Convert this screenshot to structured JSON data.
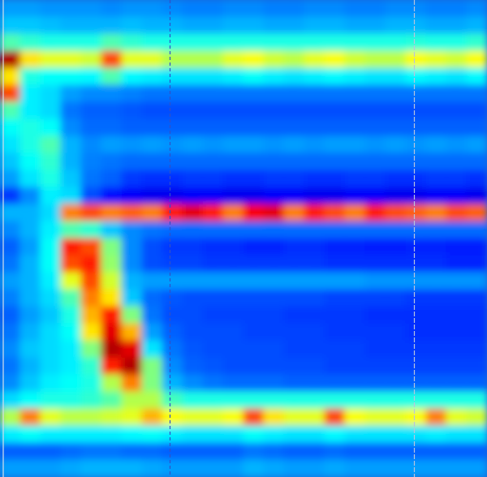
{
  "chart_data": {
    "type": "heatmap",
    "tick_labels": false,
    "zlim": [
      0,
      10
    ],
    "cells": [
      [
        2.8,
        2.8,
        2.7,
        2.7,
        2.7,
        2.6,
        2.7,
        2.7,
        2.6,
        2.5,
        2.5,
        2.6,
        2.6,
        2.5,
        2.5,
        2.6,
        2.6,
        2.5,
        2.5,
        2.6,
        2.6,
        2.5,
        2.5,
        2.6
      ],
      [
        3.2,
        3.2,
        3.1,
        3,
        3,
        3,
        3.1,
        3,
        3,
        2.9,
        2.9,
        3,
        3,
        2.9,
        2.9,
        3,
        3,
        2.9,
        2.9,
        3,
        3,
        2.9,
        2.9,
        3
      ],
      [
        4.5,
        4.2,
        4,
        4,
        4,
        4.5,
        4.2,
        4,
        4,
        4,
        4,
        4,
        4,
        4,
        4,
        4,
        4,
        4,
        4,
        4,
        4.1,
        4,
        4,
        4.2
      ],
      [
        9.5,
        6.5,
        6,
        6,
        5.8,
        8,
        6,
        6,
        5.5,
        5.5,
        5.5,
        6,
        6.2,
        5.8,
        5.6,
        6,
        6.2,
        5.8,
        5.6,
        5.6,
        6.2,
        6,
        5.8,
        6.2
      ],
      [
        6.5,
        4,
        3.8,
        3.8,
        3.7,
        4.5,
        3.7,
        3.6,
        3.5,
        3.5,
        3.5,
        3.6,
        3.8,
        3.6,
        3.5,
        3.6,
        3.7,
        3.6,
        3.5,
        3.5,
        3.7,
        3.6,
        3.5,
        3.7
      ],
      [
        8,
        3.6,
        3.4,
        2.8,
        2.6,
        2.6,
        2.5,
        2.4,
        2.4,
        2.4,
        2.4,
        2.4,
        2.4,
        2.4,
        2.4,
        2.4,
        2.4,
        2.4,
        2.4,
        2.4,
        2.4,
        2.4,
        2.4,
        2.4
      ],
      [
        4.5,
        3.6,
        3.4,
        2.4,
        2.2,
        2.2,
        2.1,
        2,
        2,
        2,
        2,
        2,
        2,
        2,
        2,
        2,
        2,
        2,
        2,
        2,
        2,
        2,
        2,
        2
      ],
      [
        3.8,
        4,
        3.8,
        2.6,
        2.3,
        2.3,
        2.2,
        2.2,
        2.2,
        2.2,
        2.2,
        2.2,
        2.2,
        2.2,
        2.2,
        2.2,
        2.2,
        2.2,
        2.2,
        2.2,
        2.2,
        2.2,
        2.2,
        2.2
      ],
      [
        3.5,
        4,
        4.5,
        3,
        2.6,
        2.8,
        2.7,
        2.8,
        2.7,
        2.8,
        2.7,
        2.8,
        2.8,
        2.7,
        2.8,
        2.7,
        2.8,
        2.8,
        2.7,
        2.8,
        2.7,
        2.8,
        2.7,
        2.8
      ],
      [
        3.2,
        3.8,
        4.2,
        3,
        2.5,
        2.4,
        2.3,
        2.3,
        2.3,
        2.3,
        2.3,
        2.3,
        2.3,
        2.3,
        2.3,
        2.3,
        2.3,
        2.3,
        2.3,
        2.3,
        2.3,
        2.3,
        2.3,
        2.3
      ],
      [
        2.8,
        3.5,
        4,
        3.2,
        2.4,
        2.2,
        1.8,
        1.7,
        1.7,
        1.8,
        1.8,
        1.7,
        1.7,
        1.8,
        1.8,
        1.7,
        1.7,
        1.8,
        1.8,
        1.7,
        1.7,
        1.8,
        1.8,
        1.7
      ],
      [
        1.8,
        2.6,
        3.6,
        3.4,
        2,
        1.4,
        1.2,
        1.1,
        1.1,
        1.2,
        1.2,
        1.1,
        1.1,
        1.2,
        1.2,
        1.1,
        1.1,
        1.2,
        1.2,
        1.1,
        1.1,
        1.2,
        1.2,
        1.1
      ],
      [
        3,
        3,
        3.4,
        7.5,
        8,
        7.5,
        7.8,
        7.5,
        8.5,
        9,
        8.5,
        7.5,
        8.8,
        9,
        7.5,
        8.5,
        8,
        7.5,
        8.5,
        8,
        7.8,
        7.5,
        8,
        7.8
      ],
      [
        2.6,
        3,
        3.6,
        4.5,
        4.2,
        3.2,
        2.6,
        2.4,
        2.3,
        2.3,
        2.3,
        2.3,
        2.3,
        2.3,
        2.3,
        2.3,
        2.3,
        2.3,
        2.3,
        2.3,
        2.3,
        2.3,
        2.3,
        2.3
      ],
      [
        2.2,
        2.8,
        3.8,
        8.5,
        8,
        5,
        2.6,
        2,
        1.8,
        1.8,
        1.7,
        1.7,
        1.6,
        1.6,
        1.7,
        1.7,
        1.6,
        1.6,
        1.5,
        1.5,
        1.6,
        1.6,
        1.5,
        1.5
      ],
      [
        2.4,
        3,
        3.8,
        8,
        8.5,
        5.2,
        2.6,
        2,
        1.9,
        1.9,
        1.8,
        1.8,
        1.8,
        1.8,
        1.8,
        1.8,
        1.7,
        1.7,
        1.7,
        1.7,
        1.7,
        1.7,
        1.6,
        1.6
      ],
      [
        2.8,
        3,
        3.6,
        6,
        8,
        5.8,
        3,
        2.8,
        2.8,
        2.8,
        2.8,
        2.8,
        2.8,
        2.8,
        2.8,
        2.8,
        2.8,
        2.8,
        2.7,
        2.7,
        2.7,
        2.7,
        2.7,
        2.7
      ],
      [
        2.5,
        3,
        3.4,
        4.5,
        7.5,
        6.5,
        3.2,
        2.3,
        2.1,
        2,
        2,
        2,
        2,
        2,
        2,
        2,
        1.9,
        1.9,
        1.9,
        1.9,
        1.8,
        1.8,
        1.8,
        1.8
      ],
      [
        2.2,
        2.8,
        3.2,
        4,
        7,
        8.5,
        5,
        2.4,
        2,
        2,
        1.9,
        1.9,
        1.9,
        1.9,
        1.8,
        1.8,
        1.8,
        1.8,
        1.7,
        1.7,
        1.7,
        1.7,
        1.7,
        1.7
      ],
      [
        2.4,
        3,
        3.4,
        3.8,
        6.5,
        9,
        7,
        2.8,
        2.2,
        2,
        2,
        2,
        1.9,
        1.9,
        1.9,
        1.9,
        1.8,
        1.8,
        1.8,
        1.8,
        1.7,
        1.7,
        1.7,
        1.7
      ],
      [
        2.6,
        3.2,
        3.4,
        3.6,
        5,
        9.5,
        9,
        3.5,
        2.4,
        2.1,
        2,
        2,
        2,
        2,
        1.9,
        1.9,
        1.9,
        1.9,
        1.8,
        1.8,
        1.8,
        1.8,
        1.8,
        1.8
      ],
      [
        2.4,
        3,
        3.4,
        3.6,
        4.2,
        8.5,
        9.5,
        5,
        2.6,
        2.2,
        2.1,
        2,
        2,
        2,
        2,
        2,
        1.9,
        1.9,
        1.9,
        1.9,
        1.9,
        1.9,
        1.9,
        1.9
      ],
      [
        2.6,
        3.2,
        3.6,
        3.8,
        4,
        5.5,
        7.5,
        5,
        3,
        2.6,
        2.4,
        2.3,
        2.3,
        2.3,
        2.2,
        2.2,
        2.2,
        2.2,
        2.2,
        2.2,
        2.2,
        2.2,
        2.2,
        2.2
      ],
      [
        3.4,
        3.8,
        4,
        4,
        4.2,
        4.6,
        5.5,
        5.5,
        4.4,
        4,
        4,
        4,
        4,
        4,
        4,
        4,
        4,
        4,
        4,
        4,
        4,
        4,
        4,
        4
      ],
      [
        5.5,
        7.5,
        6,
        5.6,
        5.6,
        5.8,
        6,
        7,
        6.2,
        6,
        6,
        6.2,
        8,
        6.5,
        6,
        6,
        8,
        6.2,
        6,
        6,
        6.2,
        7.5,
        6,
        5.8
      ],
      [
        3.6,
        3.8,
        3.6,
        3.6,
        3.6,
        3.6,
        3.7,
        3.8,
        3.6,
        3.5,
        3.5,
        3.5,
        3.8,
        3.6,
        3.5,
        3.5,
        3.7,
        3.5,
        3.5,
        3.5,
        3.5,
        3.6,
        3.5,
        3.5
      ],
      [
        2.2,
        2.2,
        2.2,
        2.3,
        2.4,
        2.4,
        2.3,
        2.3,
        2.2,
        2.2,
        2.2,
        2.2,
        2.4,
        2.3,
        2.2,
        2.2,
        2.3,
        2.2,
        2.2,
        2.2,
        2.2,
        2.2,
        2.2,
        2.2
      ],
      [
        2.8,
        2.8,
        2.8,
        2.9,
        3,
        3,
        3,
        2.9,
        2.8,
        2.8,
        2.8,
        2.8,
        3,
        2.9,
        2.8,
        2.8,
        2.9,
        2.8,
        2.8,
        2.8,
        2.8,
        2.8,
        2.8,
        2.8
      ]
    ]
  }
}
